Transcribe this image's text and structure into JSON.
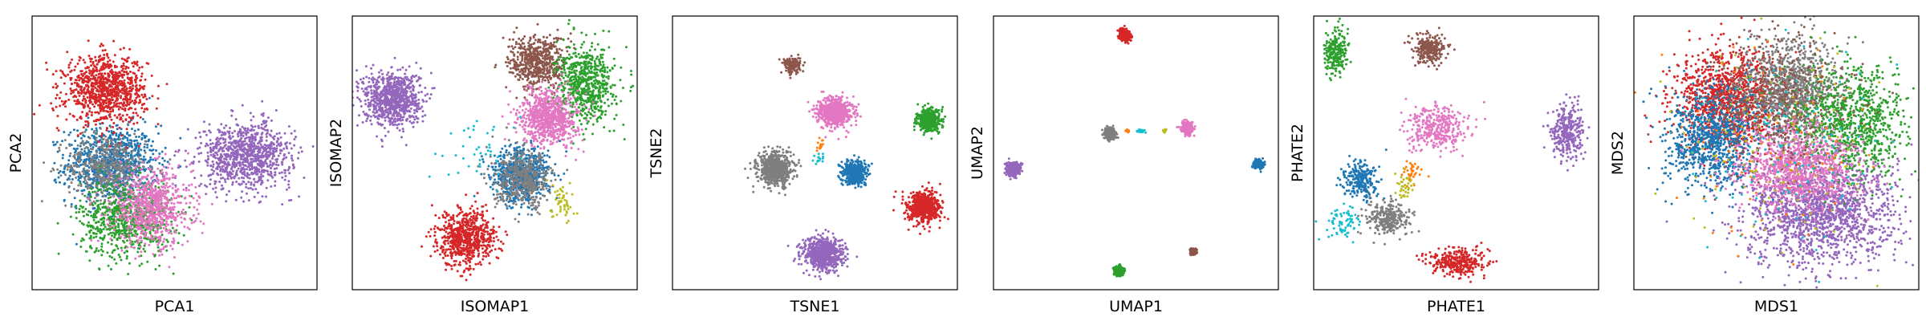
{
  "palette": {
    "blue": "#1f77b4",
    "green": "#2ca02c",
    "red": "#d62728",
    "purple": "#9467bd",
    "brown": "#8c564b",
    "pink": "#e377c2",
    "gray": "#7f7f7f",
    "olive": "#bcbd22",
    "cyan": "#17becf",
    "orange": "#ff7f0e"
  },
  "chart_data": [
    {
      "type": "scatter",
      "xlabel": "PCA1",
      "ylabel": "PCA2",
      "grid": false,
      "ticks": "hidden",
      "xlim": [
        0,
        1
      ],
      "ylim": [
        0,
        1
      ],
      "clusters": [
        {
          "color": "blue",
          "center": [
            0.28,
            0.46
          ],
          "spread": [
            0.08,
            0.07
          ],
          "count": 900
        },
        {
          "color": "gray",
          "center": [
            0.26,
            0.45
          ],
          "spread": [
            0.07,
            0.06
          ],
          "count": 450
        },
        {
          "color": "green",
          "center": [
            0.33,
            0.26
          ],
          "spread": [
            0.08,
            0.07
          ],
          "count": 750
        },
        {
          "color": "pink",
          "center": [
            0.42,
            0.3
          ],
          "spread": [
            0.07,
            0.07
          ],
          "count": 750
        },
        {
          "color": "red",
          "center": [
            0.26,
            0.73
          ],
          "spread": [
            0.07,
            0.06
          ],
          "count": 950
        },
        {
          "color": "purple",
          "center": [
            0.75,
            0.49
          ],
          "spread": [
            0.08,
            0.06
          ],
          "count": 950
        }
      ]
    },
    {
      "type": "scatter",
      "xlabel": "ISOMAP1",
      "ylabel": "ISOMAP2",
      "grid": false,
      "ticks": "hidden",
      "xlim": [
        0,
        1
      ],
      "ylim": [
        0,
        1
      ],
      "clusters": [
        {
          "color": "purple",
          "center": [
            0.14,
            0.7
          ],
          "spread": [
            0.05,
            0.05
          ],
          "count": 850
        },
        {
          "color": "brown",
          "center": [
            0.65,
            0.83
          ],
          "spread": [
            0.05,
            0.05
          ],
          "count": 550
        },
        {
          "color": "green",
          "center": [
            0.82,
            0.75
          ],
          "spread": [
            0.05,
            0.07
          ],
          "count": 650
        },
        {
          "color": "pink",
          "center": [
            0.69,
            0.63
          ],
          "spread": [
            0.05,
            0.05
          ],
          "count": 750
        },
        {
          "color": "blue",
          "center": [
            0.59,
            0.42
          ],
          "spread": [
            0.05,
            0.05
          ],
          "count": 650
        },
        {
          "color": "gray",
          "center": [
            0.6,
            0.4
          ],
          "spread": [
            0.05,
            0.05
          ],
          "count": 450
        },
        {
          "color": "red",
          "center": [
            0.4,
            0.19
          ],
          "spread": [
            0.05,
            0.05
          ],
          "count": 700
        },
        {
          "color": "olive",
          "center": [
            0.74,
            0.32
          ],
          "spread": [
            0.02,
            0.04
          ],
          "count": 50
        },
        {
          "color": "cyan",
          "center": [
            0.44,
            0.5
          ],
          "spread": [
            0.08,
            0.06
          ],
          "count": 40
        }
      ]
    },
    {
      "type": "scatter",
      "xlabel": "TSNE1",
      "ylabel": "TSNE2",
      "grid": false,
      "ticks": "hidden",
      "xlim": [
        0,
        1
      ],
      "ylim": [
        0,
        1
      ],
      "clusters": [
        {
          "color": "brown",
          "center": [
            0.42,
            0.82
          ],
          "spread": [
            0.015,
            0.015
          ],
          "count": 160
        },
        {
          "color": "pink",
          "center": [
            0.57,
            0.65
          ],
          "spread": [
            0.03,
            0.025
          ],
          "count": 650
        },
        {
          "color": "green",
          "center": [
            0.9,
            0.62
          ],
          "spread": [
            0.02,
            0.02
          ],
          "count": 420
        },
        {
          "color": "gray",
          "center": [
            0.36,
            0.44
          ],
          "spread": [
            0.03,
            0.03
          ],
          "count": 650
        },
        {
          "color": "blue",
          "center": [
            0.64,
            0.43
          ],
          "spread": [
            0.022,
            0.022
          ],
          "count": 420
        },
        {
          "color": "red",
          "center": [
            0.88,
            0.3
          ],
          "spread": [
            0.028,
            0.028
          ],
          "count": 650
        },
        {
          "color": "purple",
          "center": [
            0.53,
            0.13
          ],
          "spread": [
            0.035,
            0.03
          ],
          "count": 750
        },
        {
          "color": "orange",
          "center": [
            0.52,
            0.54
          ],
          "spread": [
            0.01,
            0.02
          ],
          "count": 12
        },
        {
          "color": "cyan",
          "center": [
            0.51,
            0.48
          ],
          "spread": [
            0.012,
            0.012
          ],
          "count": 14
        }
      ]
    },
    {
      "type": "scatter",
      "xlabel": "UMAP1",
      "ylabel": "UMAP2",
      "grid": false,
      "ticks": "hidden",
      "xlim": [
        0,
        1
      ],
      "ylim": [
        0,
        1
      ],
      "clusters": [
        {
          "color": "red",
          "center": [
            0.46,
            0.93
          ],
          "spread": [
            0.01,
            0.01
          ],
          "count": 300
        },
        {
          "color": "gray",
          "center": [
            0.41,
            0.57
          ],
          "spread": [
            0.01,
            0.01
          ],
          "count": 300
        },
        {
          "color": "pink",
          "center": [
            0.68,
            0.59
          ],
          "spread": [
            0.01,
            0.01
          ],
          "count": 300
        },
        {
          "color": "purple",
          "center": [
            0.07,
            0.44
          ],
          "spread": [
            0.012,
            0.012
          ],
          "count": 300
        },
        {
          "color": "blue",
          "center": [
            0.93,
            0.46
          ],
          "spread": [
            0.008,
            0.008
          ],
          "count": 250
        },
        {
          "color": "green",
          "center": [
            0.44,
            0.07
          ],
          "spread": [
            0.008,
            0.008
          ],
          "count": 250
        },
        {
          "color": "brown",
          "center": [
            0.7,
            0.14
          ],
          "spread": [
            0.006,
            0.006
          ],
          "count": 150
        },
        {
          "color": "olive",
          "center": [
            0.6,
            0.58
          ],
          "spread": [
            0.003,
            0.003
          ],
          "count": 20
        },
        {
          "color": "cyan",
          "center": [
            0.52,
            0.58
          ],
          "spread": [
            0.01,
            0.003
          ],
          "count": 30
        },
        {
          "color": "orange",
          "center": [
            0.47,
            0.58
          ],
          "spread": [
            0.003,
            0.003
          ],
          "count": 10
        }
      ]
    },
    {
      "type": "scatter",
      "xlabel": "PHATE1",
      "ylabel": "PHATE2",
      "grid": false,
      "ticks": "hidden",
      "xlim": [
        0,
        1
      ],
      "ylim": [
        0,
        1
      ],
      "clusters": [
        {
          "color": "green",
          "center": [
            0.08,
            0.87
          ],
          "spread": [
            0.02,
            0.04
          ],
          "count": 220
        },
        {
          "color": "brown",
          "center": [
            0.41,
            0.88
          ],
          "spread": [
            0.03,
            0.025
          ],
          "count": 260
        },
        {
          "color": "pink",
          "center": [
            0.43,
            0.59
          ],
          "spread": [
            0.05,
            0.04
          ],
          "count": 350
        },
        {
          "color": "purple",
          "center": [
            0.89,
            0.58
          ],
          "spread": [
            0.03,
            0.05
          ],
          "count": 320
        },
        {
          "color": "blue",
          "center": [
            0.16,
            0.4
          ],
          "spread": [
            0.03,
            0.035
          ],
          "count": 250
        },
        {
          "color": "orange",
          "center": [
            0.34,
            0.43
          ],
          "spread": [
            0.015,
            0.025
          ],
          "count": 35
        },
        {
          "color": "olive",
          "center": [
            0.32,
            0.38
          ],
          "spread": [
            0.015,
            0.025
          ],
          "count": 35
        },
        {
          "color": "gray",
          "center": [
            0.26,
            0.26
          ],
          "spread": [
            0.04,
            0.03
          ],
          "count": 280
        },
        {
          "color": "cyan",
          "center": [
            0.1,
            0.25
          ],
          "spread": [
            0.03,
            0.03
          ],
          "count": 70
        },
        {
          "color": "red",
          "center": [
            0.5,
            0.1
          ],
          "spread": [
            0.05,
            0.025
          ],
          "count": 320
        }
      ]
    },
    {
      "type": "scatter",
      "xlabel": "MDS1",
      "ylabel": "MDS2",
      "grid": false,
      "ticks": "hidden",
      "xlim": [
        0,
        1
      ],
      "ylim": [
        0,
        1
      ],
      "clusters": [
        {
          "color": "purple",
          "center": [
            0.65,
            0.28
          ],
          "spread": [
            0.13,
            0.1
          ],
          "count": 1600
        },
        {
          "color": "red",
          "center": [
            0.33,
            0.7
          ],
          "spread": [
            0.09,
            0.09
          ],
          "count": 1100
        },
        {
          "color": "gray",
          "center": [
            0.55,
            0.73
          ],
          "spread": [
            0.09,
            0.09
          ],
          "count": 1100
        },
        {
          "color": "green",
          "center": [
            0.76,
            0.62
          ],
          "spread": [
            0.1,
            0.1
          ],
          "count": 900
        },
        {
          "color": "blue",
          "center": [
            0.27,
            0.55
          ],
          "spread": [
            0.08,
            0.09
          ],
          "count": 900
        },
        {
          "color": "pink",
          "center": [
            0.58,
            0.45
          ],
          "spread": [
            0.1,
            0.08
          ],
          "count": 1000
        },
        {
          "color": "brown",
          "center": [
            0.5,
            0.68
          ],
          "spread": [
            0.12,
            0.12
          ],
          "count": 400
        },
        {
          "color": "olive",
          "center": [
            0.5,
            0.5
          ],
          "spread": [
            0.18,
            0.18
          ],
          "count": 120
        },
        {
          "color": "cyan",
          "center": [
            0.5,
            0.5
          ],
          "spread": [
            0.18,
            0.18
          ],
          "count": 120
        },
        {
          "color": "orange",
          "center": [
            0.5,
            0.5
          ],
          "spread": [
            0.18,
            0.18
          ],
          "count": 80
        }
      ]
    }
  ]
}
